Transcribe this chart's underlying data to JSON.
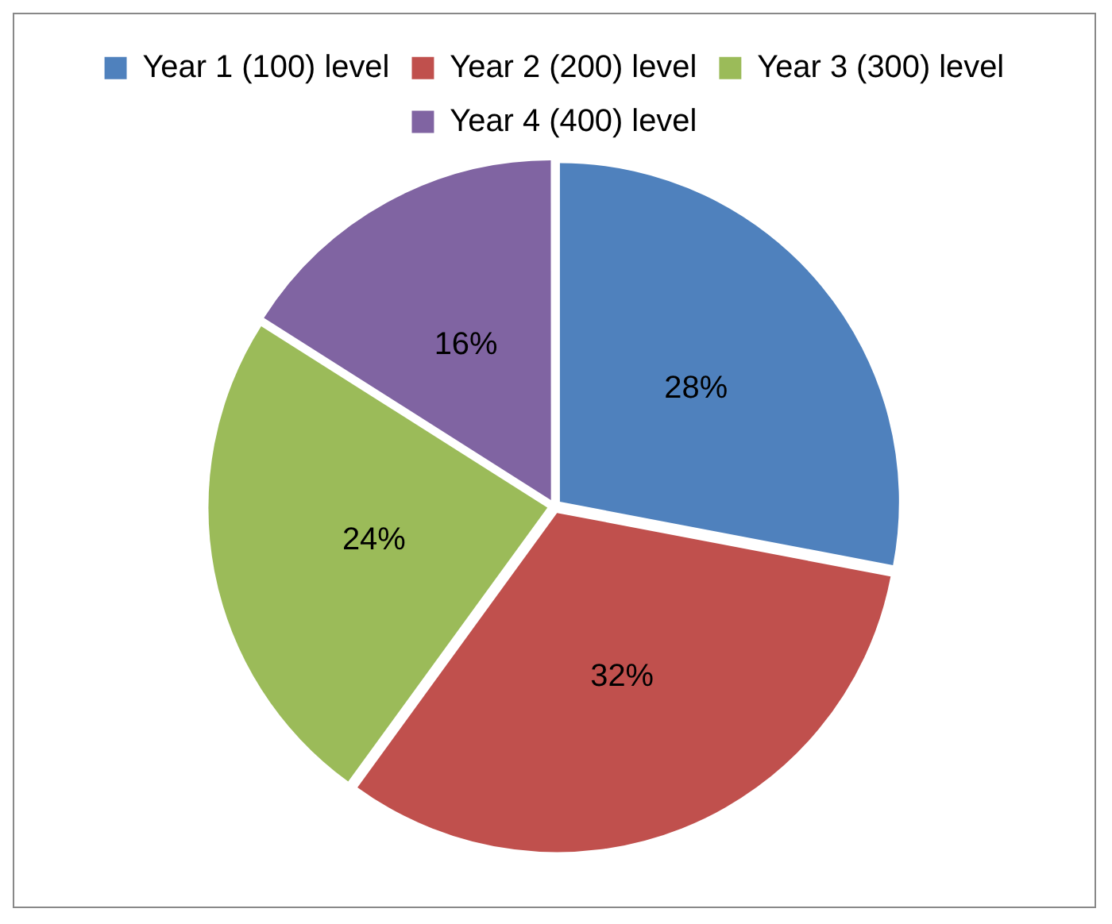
{
  "chart_data": {
    "type": "pie",
    "categories": [
      "Year 1 (100) level",
      "Year 2 (200) level",
      "Year 3 (300) level",
      "Year 4 (400) level"
    ],
    "values": [
      28,
      32,
      24,
      16
    ],
    "colors": [
      "#4f81bd",
      "#c0504d",
      "#9bbb59",
      "#8064a2"
    ],
    "value_labels": [
      "28%",
      "32%",
      "24%",
      "16%"
    ],
    "legend": "top"
  }
}
